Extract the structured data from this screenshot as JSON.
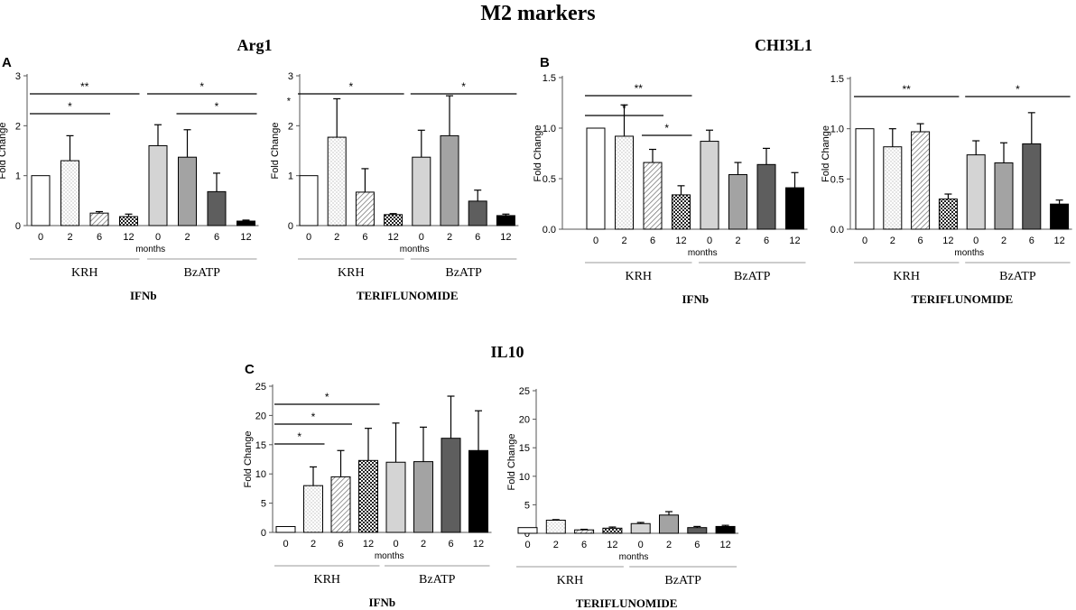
{
  "figure": {
    "main_title": "M2 markers",
    "sections": [
      {
        "letter": "A",
        "title": "Arg1"
      },
      {
        "letter": "B",
        "title": "CHI3L1"
      },
      {
        "letter": "C",
        "title": "IL10"
      }
    ]
  },
  "colors": {
    "ink": "#000000",
    "axis_gray": "#555555",
    "bar_white": "#ffffff",
    "bar_light_gray": "#d4d4d4",
    "bar_mid_gray": "#a3a3a3",
    "bar_dark_gray": "#5e5e5e",
    "bar_black": "#000000",
    "divider_gray": "#9a9a9a"
  },
  "chart_data": [
    {
      "type": "bar",
      "panel": "A",
      "marker": "Arg1",
      "treatment": "IFNb",
      "categories": [
        "0",
        "2",
        "6",
        "12",
        "0",
        "2",
        "6",
        "12"
      ],
      "groups": [
        "KRH",
        "BzATP"
      ],
      "values": [
        1.0,
        1.3,
        0.25,
        0.18,
        1.6,
        1.37,
        0.68,
        0.09
      ],
      "errors": [
        0,
        0.5,
        0.03,
        0.05,
        0.42,
        0.55,
        0.37,
        0.02
      ],
      "ylim": [
        0,
        3
      ],
      "yticks": [
        "0",
        "1",
        "2",
        "3"
      ],
      "ylabel": "Fold Change",
      "xlabel": "months",
      "significance": [
        {
          "from": 0,
          "to": 3,
          "label": "**"
        },
        {
          "from": 0,
          "to": 2,
          "label": "*"
        },
        {
          "from": 4,
          "to": 7,
          "label": "*"
        },
        {
          "from": 5,
          "to": 7,
          "label": "*"
        }
      ]
    },
    {
      "type": "bar",
      "panel": "A",
      "marker": "Arg1",
      "treatment": "TERIFLUNOMIDE",
      "categories": [
        "0",
        "2",
        "6",
        "12",
        "0",
        "2",
        "6",
        "12"
      ],
      "groups": [
        "KRH",
        "BzATP"
      ],
      "values": [
        1.0,
        1.77,
        0.67,
        0.22,
        1.37,
        1.8,
        0.49,
        0.2
      ],
      "errors": [
        0,
        0.77,
        0.47,
        0.02,
        0.54,
        0.8,
        0.22,
        0.03
      ],
      "ylim": [
        0,
        3
      ],
      "yticks": [
        "0",
        "1",
        "2",
        "3"
      ],
      "ytick_extra": "*",
      "ylabel": "Fold Change",
      "xlabel": "months",
      "significance": [
        {
          "from": 0,
          "to": 3,
          "label": "*"
        },
        {
          "from": 4,
          "to": 7,
          "label": "*"
        }
      ]
    },
    {
      "type": "bar",
      "panel": "B",
      "marker": "CHI3L1",
      "treatment": "IFNb",
      "categories": [
        "0",
        "2",
        "6",
        "12",
        "0",
        "2",
        "6",
        "12"
      ],
      "groups": [
        "KRH",
        "BzATP"
      ],
      "values": [
        1.0,
        0.92,
        0.66,
        0.34,
        0.87,
        0.54,
        0.64,
        0.41
      ],
      "errors": [
        0,
        0.31,
        0.13,
        0.09,
        0.11,
        0.12,
        0.16,
        0.15
      ],
      "ylim": [
        0,
        1.5
      ],
      "yticks": [
        "0.0",
        "0.5",
        "1.0",
        "1.5"
      ],
      "ylabel": "Fold Change",
      "xlabel": "months",
      "significance": [
        {
          "from": 0,
          "to": 3,
          "label": "**"
        },
        {
          "from": 0,
          "to": 2,
          "label": "*"
        },
        {
          "from": 2,
          "to": 3,
          "label": "*"
        }
      ]
    },
    {
      "type": "bar",
      "panel": "B",
      "marker": "CHI3L1",
      "treatment": "TERIFLUNOMIDE",
      "categories": [
        "0",
        "2",
        "6",
        "12",
        "0",
        "2",
        "6",
        "12"
      ],
      "groups": [
        "KRH",
        "BzATP"
      ],
      "values": [
        1.0,
        0.82,
        0.97,
        0.3,
        0.74,
        0.66,
        0.85,
        0.25
      ],
      "errors": [
        0,
        0.18,
        0.08,
        0.05,
        0.14,
        0.2,
        0.31,
        0.04
      ],
      "ylim": [
        0,
        1.5
      ],
      "yticks": [
        "0.0",
        "0.5",
        "1.0",
        "1.5"
      ],
      "ylabel": "Fold Change",
      "xlabel": "months",
      "significance": [
        {
          "from": 0,
          "to": 3,
          "label": "**"
        },
        {
          "from": 4,
          "to": 7,
          "label": "*"
        }
      ]
    },
    {
      "type": "bar",
      "panel": "C",
      "marker": "IL10",
      "treatment": "IFNb",
      "categories": [
        "0",
        "2",
        "6",
        "12",
        "0",
        "2",
        "6",
        "12"
      ],
      "groups": [
        "KRH",
        "BzATP"
      ],
      "values": [
        1.0,
        8.0,
        9.5,
        12.3,
        12.0,
        12.1,
        16.1,
        14.0
      ],
      "errors": [
        0,
        3.2,
        4.5,
        5.5,
        6.7,
        5.9,
        7.2,
        6.8
      ],
      "ylim": [
        0,
        25
      ],
      "yticks": [
        "0",
        "5",
        "10",
        "15",
        "20",
        "25"
      ],
      "ylabel": "Fold Change",
      "xlabel": "months",
      "significance": [
        {
          "from": 0,
          "to": 3,
          "label": "*"
        },
        {
          "from": 0,
          "to": 2,
          "label": "*"
        },
        {
          "from": 0,
          "to": 1,
          "label": "*"
        }
      ]
    },
    {
      "type": "bar",
      "panel": "C",
      "marker": "IL10",
      "treatment": "TERIFLUNOMIDE",
      "categories": [
        "0",
        "2",
        "6",
        "12",
        "0",
        "2",
        "6",
        "12"
      ],
      "groups": [
        "KRH",
        "BzATP"
      ],
      "values": [
        1.0,
        2.3,
        0.6,
        0.9,
        1.7,
        3.2,
        1.0,
        1.2
      ],
      "errors": [
        0,
        0.1,
        0.1,
        0.2,
        0.2,
        0.6,
        0.2,
        0.2
      ],
      "ylim": [
        0,
        25
      ],
      "yticks": [
        "0",
        "5",
        "10",
        "15",
        "20",
        "25"
      ],
      "ylabel": "Fold Change",
      "xlabel": "months",
      "significance": []
    }
  ]
}
